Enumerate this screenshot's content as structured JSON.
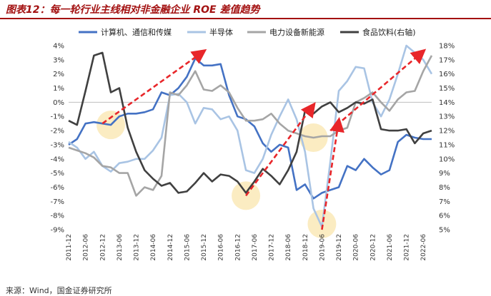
{
  "title": "图表12：每一轮行业主线相对非金融企业 ROE 差值趋势",
  "source": "来源：Wind，国金证券研究所",
  "chart_data": {
    "type": "line",
    "dates": [
      "2011-12",
      "2012-03",
      "2012-06",
      "2012-09",
      "2012-12",
      "2013-03",
      "2013-06",
      "2013-09",
      "2013-12",
      "2014-03",
      "2014-06",
      "2014-09",
      "2014-12",
      "2015-03",
      "2015-06",
      "2015-09",
      "2015-12",
      "2016-03",
      "2016-06",
      "2016-09",
      "2016-12",
      "2017-03",
      "2017-06",
      "2017-09",
      "2017-12",
      "2018-03",
      "2018-06",
      "2018-09",
      "2018-12",
      "2019-03",
      "2019-06",
      "2019-09",
      "2019-12",
      "2020-03",
      "2020-06",
      "2020-09",
      "2020-12",
      "2021-03",
      "2021-06",
      "2021-09",
      "2021-12",
      "2022-03",
      "2022-06",
      "2022-09"
    ],
    "x_tick_labels": [
      "2011-12",
      "2012-06",
      "2012-12",
      "2013-06",
      "2013-12",
      "2014-06",
      "2014-12",
      "2015-06",
      "2015-12",
      "2016-06",
      "2016-12",
      "2017-06",
      "2017-12",
      "2018-06",
      "2018-12",
      "2019-06",
      "2019-12",
      "2020-06",
      "2020-12",
      "2021-06",
      "2021-12",
      "2022-06"
    ],
    "y_left": {
      "min": -9,
      "max": 4,
      "step": 1,
      "unit": "%"
    },
    "y_right": {
      "min": 5,
      "max": 18,
      "step": 1,
      "unit": "%"
    },
    "legend_position": "top",
    "series": [
      {
        "name": "计算机、通信和传媒",
        "axis": "left",
        "color": "#4472c4",
        "values": [
          -3.0,
          -2.6,
          -1.5,
          -1.4,
          -1.5,
          -1.6,
          -1.0,
          -0.8,
          -0.8,
          -0.7,
          -0.5,
          0.7,
          0.5,
          1.0,
          1.8,
          3.1,
          2.6,
          2.6,
          2.7,
          0.5,
          -1.0,
          -1.2,
          -1.7,
          -2.9,
          -3.5,
          -3.0,
          -3.2,
          -6.2,
          -5.8,
          -6.8,
          -6.4,
          -6.2,
          -6.0,
          -4.5,
          -4.8,
          -4.0,
          -4.6,
          -5.1,
          -4.8,
          -2.8,
          -2.3,
          -2.5,
          -2.6,
          -2.6
        ]
      },
      {
        "name": "半导体",
        "axis": "left",
        "color": "#a9c4e4",
        "values": [
          -2.8,
          -3.2,
          -4.0,
          -3.5,
          -4.5,
          -4.9,
          -4.3,
          -4.2,
          -4.0,
          -4.0,
          -3.4,
          -2.5,
          0.5,
          0.6,
          0.0,
          -1.5,
          -0.4,
          -0.5,
          -1.2,
          -1.0,
          -2.0,
          -4.8,
          -5.0,
          -4.0,
          -2.3,
          -1.0,
          0.2,
          -1.2,
          -3.5,
          -7.5,
          -8.8,
          -4.2,
          0.8,
          1.5,
          2.5,
          2.4,
          0.0,
          -1.0,
          0.2,
          2.0,
          4.0,
          3.5,
          3.0,
          2.0
        ]
      },
      {
        "name": "电力设备新能源",
        "axis": "left",
        "color": "#a5a5a5",
        "values": [
          -3.2,
          -3.4,
          -3.6,
          -3.9,
          -4.5,
          -4.6,
          -5.0,
          -5.0,
          -6.6,
          -6.0,
          -6.2,
          -5.2,
          0.7,
          0.5,
          1.2,
          2.2,
          0.9,
          0.8,
          1.2,
          0.7,
          -0.4,
          -1.3,
          -1.3,
          -1.2,
          -0.8,
          -1.5,
          -2.0,
          -2.2,
          -2.4,
          -2.5,
          -2.4,
          -2.4,
          -2.0,
          -1.8,
          0.0,
          0.3,
          0.7,
          0.0,
          -0.6,
          0.2,
          0.7,
          0.8,
          2.2,
          3.3
        ]
      },
      {
        "name": "食品饮料(右轴)",
        "axis": "right",
        "color": "#404040",
        "values": [
          12.7,
          12.4,
          14.8,
          17.3,
          17.5,
          14.7,
          15.0,
          12.2,
          10.5,
          9.2,
          8.6,
          8.1,
          8.3,
          7.6,
          7.7,
          8.3,
          9.0,
          8.4,
          8.9,
          8.8,
          8.4,
          7.6,
          8.4,
          9.3,
          8.8,
          8.2,
          9.2,
          10.5,
          13.4,
          13.2,
          13.7,
          14.0,
          13.3,
          13.6,
          14.0,
          13.9,
          14.2,
          12.1,
          12.0,
          12.0,
          12.1,
          11.1,
          11.8,
          12.0
        ]
      }
    ],
    "highlight_circles": [
      {
        "date": "2013-03"
      },
      {
        "date": "2017-03"
      },
      {
        "date": "2019-06"
      },
      {
        "date": "2019-03"
      }
    ],
    "trend_arrows": [
      {
        "from": {
          "date": "2012-12",
          "left": -1.5
        },
        "to": {
          "date": "2015-12",
          "left": 3.6
        }
      },
      {
        "from": {
          "date": "2017-03",
          "left": -6.6
        },
        "to": {
          "date": "2019-03",
          "left": -0.2
        }
      },
      {
        "from": {
          "date": "2019-06",
          "left": -9.0
        },
        "to": {
          "date": "2019-12",
          "left": -1.3
        }
      },
      {
        "from": {
          "date": "2019-09",
          "left": -2.0
        },
        "to": {
          "date": "2022-06",
          "left": 3.6
        }
      }
    ]
  }
}
